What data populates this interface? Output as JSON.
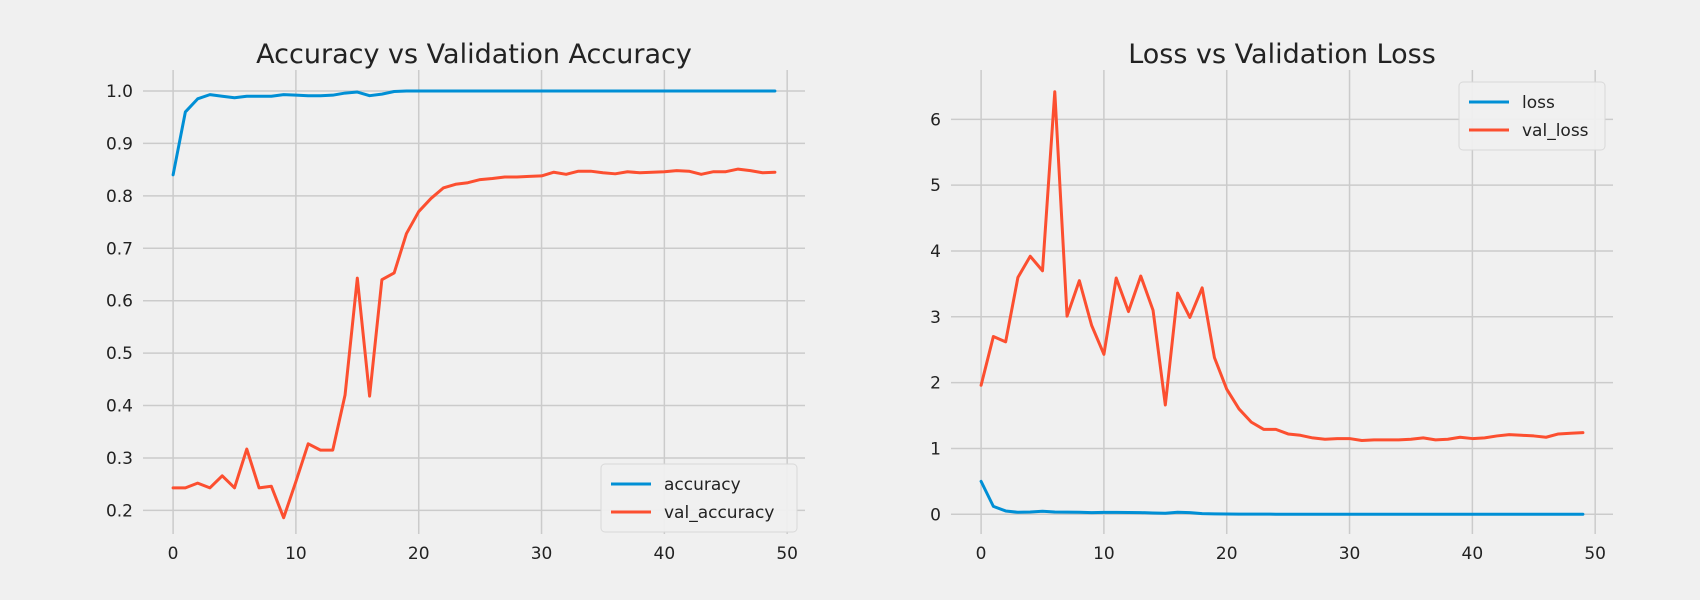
{
  "colors": {
    "background": "#f0f0f0",
    "grid": "#cbcbcb",
    "blue": "#008fd5",
    "red": "#fc4f30",
    "text": "#222222"
  },
  "chart_data": [
    {
      "type": "line",
      "title": "Accuracy vs Validation Accuracy",
      "xlabel": "",
      "ylabel": "",
      "xlim": [
        -2.45,
        51.45
      ],
      "ylim": [
        0.155,
        1.04
      ],
      "xticks": [
        0,
        10,
        20,
        30,
        40,
        50
      ],
      "xtick_labels": [
        "0",
        "10",
        "20",
        "30",
        "40",
        "50"
      ],
      "yticks": [
        0.2,
        0.3,
        0.4,
        0.5,
        0.6,
        0.7,
        0.8,
        0.9,
        1.0
      ],
      "ytick_labels": [
        "0.2",
        "0.3",
        "0.4",
        "0.5",
        "0.6",
        "0.7",
        "0.8",
        "0.9",
        "1.0"
      ],
      "grid": true,
      "legend": "lower-right",
      "series": [
        {
          "name": "accuracy",
          "color": "#008fd5",
          "values": [
            0.84,
            0.96,
            0.985,
            0.993,
            0.99,
            0.987,
            0.99,
            0.99,
            0.99,
            0.993,
            0.992,
            0.991,
            0.991,
            0.992,
            0.996,
            0.998,
            0.991,
            0.994,
            0.999,
            1.0,
            1.0,
            1.0,
            1.0,
            1.0,
            1.0,
            1.0,
            1.0,
            1.0,
            1.0,
            1.0,
            1.0,
            1.0,
            1.0,
            1.0,
            1.0,
            1.0,
            1.0,
            1.0,
            1.0,
            1.0,
            1.0,
            1.0,
            1.0,
            1.0,
            1.0,
            1.0,
            1.0,
            1.0,
            1.0,
            1.0
          ]
        },
        {
          "name": "val_accuracy",
          "color": "#fc4f30",
          "values": [
            0.243,
            0.243,
            0.252,
            0.243,
            0.266,
            0.243,
            0.317,
            0.243,
            0.246,
            0.186,
            0.255,
            0.327,
            0.315,
            0.315,
            0.42,
            0.643,
            0.418,
            0.64,
            0.653,
            0.728,
            0.77,
            0.795,
            0.815,
            0.822,
            0.825,
            0.831,
            0.833,
            0.836,
            0.836,
            0.837,
            0.838,
            0.845,
            0.841,
            0.847,
            0.847,
            0.844,
            0.842,
            0.846,
            0.844,
            0.845,
            0.846,
            0.848,
            0.847,
            0.841,
            0.846,
            0.846,
            0.851,
            0.848,
            0.844,
            0.845
          ]
        }
      ]
    },
    {
      "type": "line",
      "title": "Loss vs Validation Loss",
      "xlabel": "",
      "ylabel": "",
      "xlim": [
        -2.45,
        51.45
      ],
      "ylim": [
        -0.3,
        6.75
      ],
      "xticks": [
        0,
        10,
        20,
        30,
        40,
        50
      ],
      "xtick_labels": [
        "0",
        "10",
        "20",
        "30",
        "40",
        "50"
      ],
      "yticks": [
        0,
        1,
        2,
        3,
        4,
        5,
        6
      ],
      "ytick_labels": [
        "0",
        "1",
        "2",
        "3",
        "4",
        "5",
        "6"
      ],
      "grid": true,
      "legend": "upper-right",
      "series": [
        {
          "name": "loss",
          "color": "#008fd5",
          "values": [
            0.5,
            0.12,
            0.05,
            0.03,
            0.035,
            0.045,
            0.035,
            0.032,
            0.03,
            0.025,
            0.028,
            0.028,
            0.027,
            0.025,
            0.02,
            0.015,
            0.03,
            0.025,
            0.01,
            0.005,
            0.003,
            0.002,
            0.002,
            0.002,
            0.001,
            0.001,
            0.001,
            0.001,
            0.001,
            0.001,
            0.001,
            0.001,
            0.001,
            0.001,
            0.001,
            0.001,
            0.001,
            0.001,
            0.001,
            0.001,
            0.001,
            0.001,
            0.001,
            0.001,
            0.001,
            0.001,
            0.001,
            0.001,
            0.001,
            0.001
          ]
        },
        {
          "name": "val_loss",
          "color": "#fc4f30",
          "values": [
            1.96,
            2.7,
            2.62,
            3.6,
            3.92,
            3.7,
            6.42,
            3.01,
            3.55,
            2.87,
            2.43,
            3.59,
            3.08,
            3.62,
            3.1,
            1.66,
            3.36,
            2.99,
            3.44,
            2.38,
            1.9,
            1.6,
            1.4,
            1.29,
            1.29,
            1.22,
            1.2,
            1.16,
            1.14,
            1.15,
            1.15,
            1.12,
            1.13,
            1.13,
            1.13,
            1.14,
            1.16,
            1.13,
            1.14,
            1.17,
            1.15,
            1.16,
            1.19,
            1.21,
            1.2,
            1.19,
            1.17,
            1.22,
            1.23,
            1.24
          ]
        }
      ]
    }
  ]
}
